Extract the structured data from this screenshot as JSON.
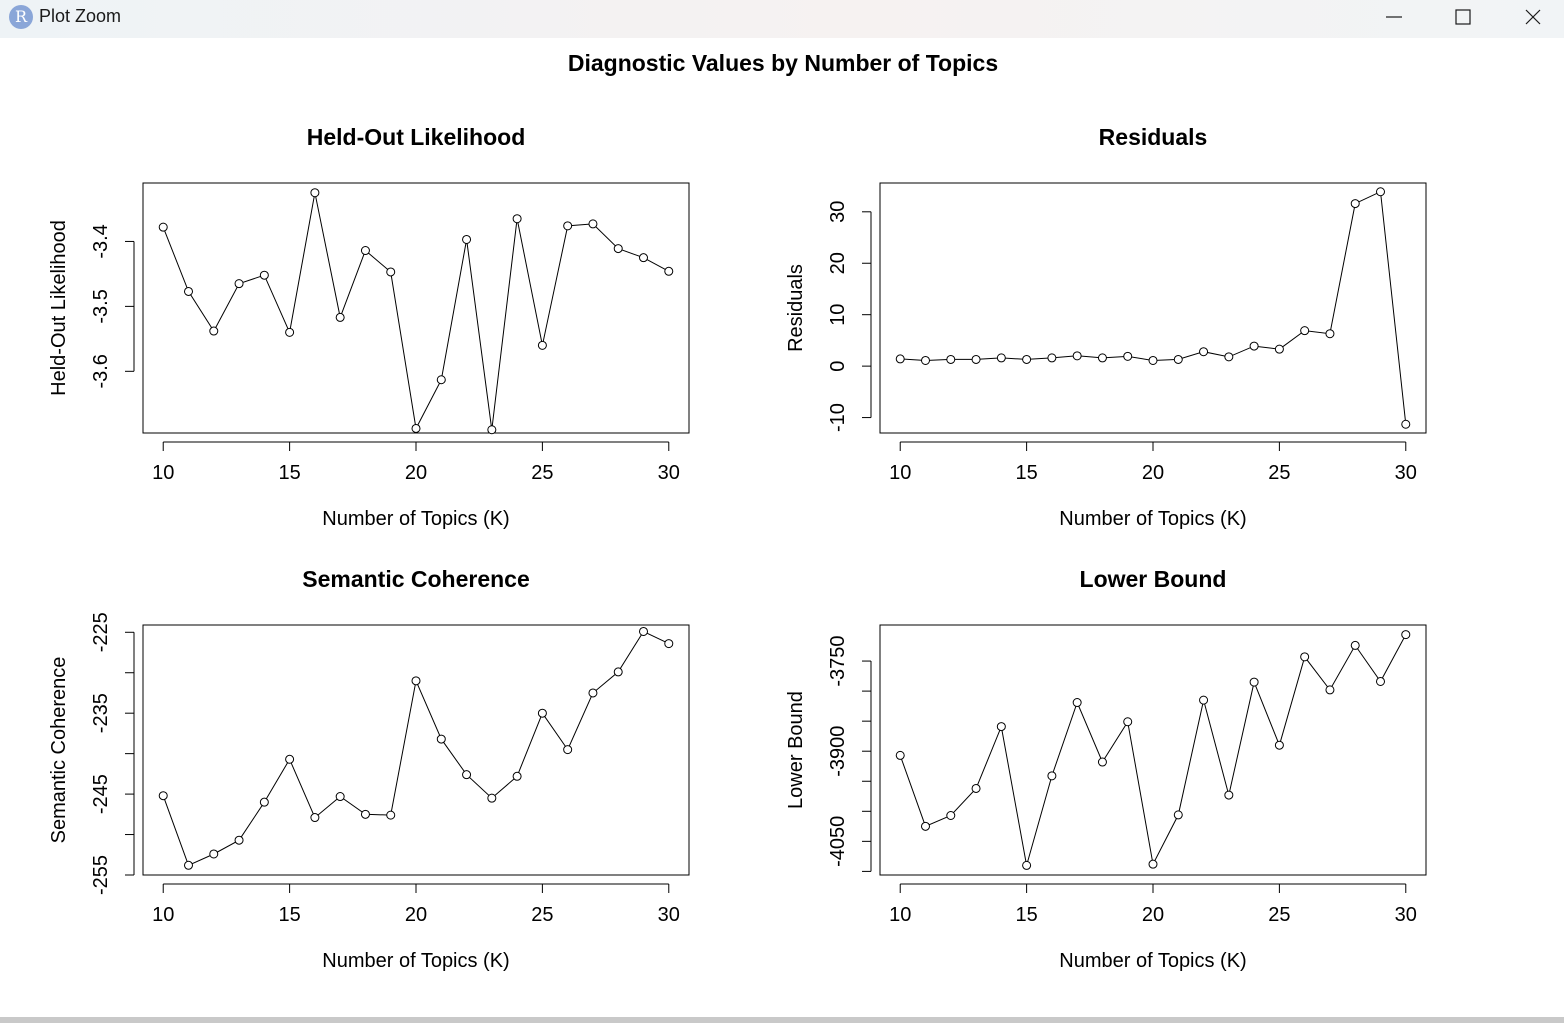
{
  "window": {
    "title": "Plot Zoom",
    "icon_letter": "R",
    "icon_color": "#8aa6d8"
  },
  "controls": {
    "minimize": "minimize-icon",
    "maximize": "maximize-icon",
    "close": "close-icon"
  },
  "figure": {
    "title": "Diagnostic Values by Number of Topics"
  },
  "chart_data": [
    {
      "type": "line",
      "title": "Held-Out Likelihood",
      "xlabel": "Number of Topics (K)",
      "ylabel": "Held-Out Likelihood",
      "x": [
        10,
        11,
        12,
        13,
        14,
        15,
        16,
        17,
        18,
        19,
        20,
        21,
        22,
        23,
        24,
        25,
        26,
        27,
        28,
        29,
        30
      ],
      "values": [
        -3.378,
        -3.477,
        -3.538,
        -3.465,
        -3.452,
        -3.54,
        -3.325,
        -3.517,
        -3.414,
        -3.447,
        -3.688,
        -3.613,
        -3.397,
        -3.69,
        -3.365,
        -3.56,
        -3.376,
        -3.373,
        -3.411,
        -3.425,
        -3.446
      ],
      "xlim": [
        9.2,
        30.8
      ],
      "ylim": [
        -3.695,
        -3.31
      ],
      "xticks": [
        10,
        15,
        20,
        25,
        30
      ],
      "yticks": [
        -3.4,
        -3.5,
        -3.6
      ],
      "ytick_labels": [
        "-3.4",
        "-3.5",
        "-3.6"
      ],
      "grid": false,
      "marker": "open-circle"
    },
    {
      "type": "line",
      "title": "Residuals",
      "xlabel": "Number of Topics (K)",
      "ylabel": "Residuals",
      "x": [
        10,
        11,
        12,
        13,
        14,
        15,
        16,
        17,
        18,
        19,
        20,
        21,
        22,
        23,
        24,
        25,
        26,
        27,
        28,
        29,
        30
      ],
      "values": [
        1.4,
        1.1,
        1.3,
        1.3,
        1.6,
        1.3,
        1.6,
        2.0,
        1.6,
        1.9,
        1.1,
        1.3,
        2.8,
        1.8,
        3.9,
        3.3,
        6.9,
        6.3,
        31.6,
        33.9,
        -11.3
      ],
      "xlim": [
        9.2,
        30.8
      ],
      "ylim": [
        -13.0,
        35.6
      ],
      "xticks": [
        10,
        15,
        20,
        25,
        30
      ],
      "yticks": [
        -10,
        0,
        10,
        20,
        30
      ],
      "ytick_labels": [
        "-10",
        "0",
        "10",
        "20",
        "30"
      ],
      "grid": false,
      "marker": "open-circle"
    },
    {
      "type": "line",
      "title": "Semantic Coherence",
      "xlabel": "Number of Topics (K)",
      "ylabel": "Semantic Coherence",
      "x": [
        10,
        11,
        12,
        13,
        14,
        15,
        16,
        17,
        18,
        19,
        20,
        21,
        22,
        23,
        24,
        25,
        26,
        27,
        28,
        29,
        30
      ],
      "values": [
        -245.2,
        -253.8,
        -252.4,
        -250.7,
        -246.0,
        -240.7,
        -247.9,
        -245.3,
        -247.5,
        -247.6,
        -231.0,
        -238.2,
        -242.6,
        -245.5,
        -242.8,
        -235.0,
        -239.5,
        -232.5,
        -229.9,
        -224.9,
        -226.4
      ],
      "xlim": [
        9.2,
        30.8
      ],
      "ylim": [
        -255.0,
        -224.1
      ],
      "xticks": [
        10,
        15,
        20,
        25,
        30
      ],
      "yticks": [
        -225,
        -230,
        -235,
        -240,
        -245,
        -250,
        -255
      ],
      "ytick_labels": [
        "-225",
        "",
        "-235",
        "",
        "-245",
        "",
        "-255"
      ],
      "grid": false,
      "marker": "open-circle"
    },
    {
      "type": "line",
      "title": "Lower Bound",
      "xlabel": "Number of Topics (K)",
      "ylabel": "Lower Bound",
      "x": [
        10,
        11,
        12,
        13,
        14,
        15,
        16,
        17,
        18,
        19,
        20,
        21,
        22,
        23,
        24,
        25,
        26,
        27,
        28,
        29,
        30
      ],
      "values": [
        -3907,
        -4025,
        -4007,
        -3962,
        -3859,
        -4090,
        -3941,
        -3819,
        -3918,
        -3851,
        -4088,
        -4006,
        -3815,
        -3973,
        -3785,
        -3890,
        -3743,
        -3798,
        -3724,
        -3784,
        -3706
      ],
      "xlim": [
        9.2,
        30.8
      ],
      "ylim": [
        -4106,
        -3690
      ],
      "xticks": [
        10,
        15,
        20,
        25,
        30
      ],
      "yticks": [
        -3750,
        -3800,
        -3850,
        -3900,
        -3950,
        -4000,
        -4050,
        -4100
      ],
      "ytick_labels": [
        "-3750",
        "",
        "",
        "-3900",
        "",
        "",
        "-4050",
        ""
      ],
      "grid": false,
      "marker": "open-circle"
    }
  ]
}
